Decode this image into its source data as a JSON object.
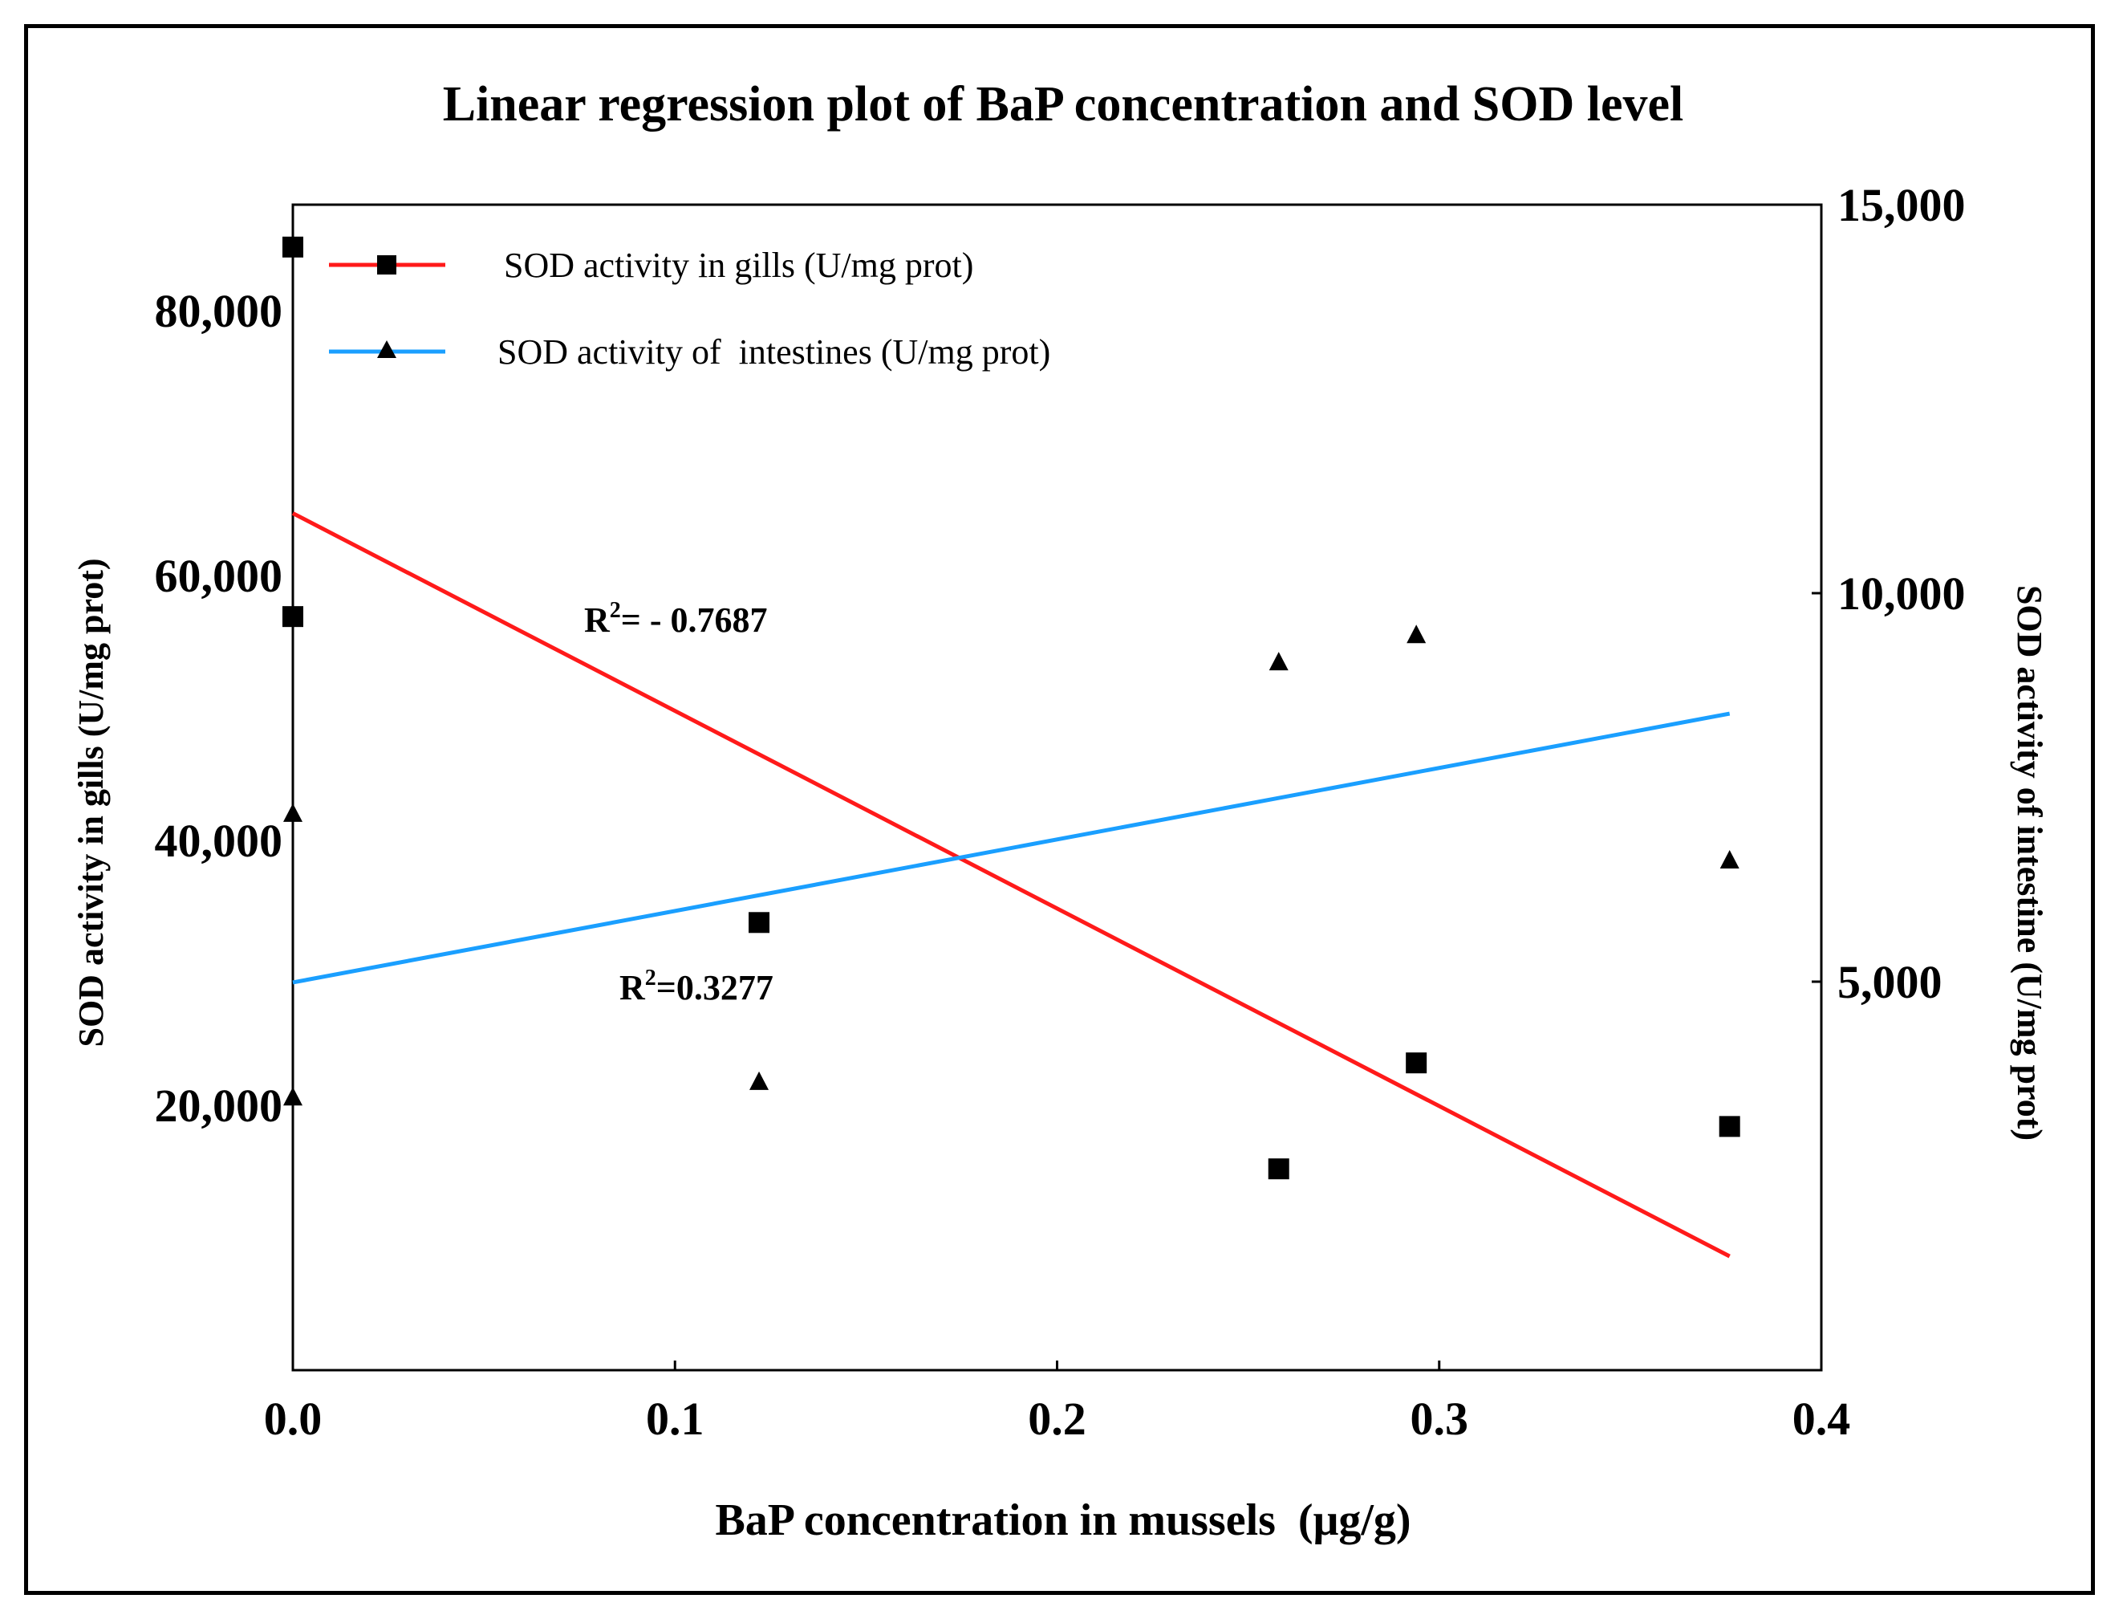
{
  "chart_data": {
    "type": "scatter",
    "title": "Linear regression plot of BaP concentration and SOD level",
    "xlabel": "BaP concentration in mussels  (μg/g)",
    "ylabel_left": "SOD activity in gills (U/mg prot)",
    "ylabel_right": "SOD activity of intestine (U/mg prot)",
    "xlim": [
      0.0,
      0.4
    ],
    "ylim_left": [
      0,
      88000
    ],
    "ylim_right": [
      0,
      15000
    ],
    "x_ticks": [
      "0.0",
      "0.1",
      "0.2",
      "0.3",
      "0.4"
    ],
    "x_tick_values": [
      0.0,
      0.1,
      0.2,
      0.3,
      0.4
    ],
    "y_left_ticks": [
      "20,000",
      "40,000",
      "60,000",
      "80,000"
    ],
    "y_left_tick_values": [
      20000,
      40000,
      60000,
      80000
    ],
    "y_right_ticks": [
      "5,000",
      "10,000",
      "15,000"
    ],
    "y_right_tick_values": [
      5000,
      10000,
      15000
    ],
    "grid": false,
    "legend_position": "top-left",
    "series": [
      {
        "name": "SOD activity in gills (U/mg prot)",
        "axis": "left",
        "color": "#ff1a1a",
        "marker": "square",
        "x": [
          0.0,
          0.0,
          0.122,
          0.258,
          0.294,
          0.376
        ],
        "y": [
          84800,
          56900,
          33800,
          15200,
          23200,
          18400
        ],
        "fit_x": [
          0.0,
          0.376
        ],
        "fit_y": [
          64700,
          8600
        ]
      },
      {
        "name": "SOD activity of  intestines (U/mg prot)",
        "axis": "right",
        "color": "#1a9fff",
        "marker": "triangle",
        "x": [
          0.0,
          0.0,
          0.122,
          0.258,
          0.294,
          0.376
        ],
        "y": [
          7150,
          3500,
          3700,
          9100,
          9450,
          6550
        ],
        "fit_x": [
          0.0,
          0.376
        ],
        "fit_y": [
          4990,
          8450
        ]
      }
    ],
    "annotations": [
      {
        "text": "R",
        "sup": "2",
        "rest": "= - 0.7687"
      },
      {
        "text": "R",
        "sup": "2",
        "rest": "=0.3277"
      }
    ]
  }
}
